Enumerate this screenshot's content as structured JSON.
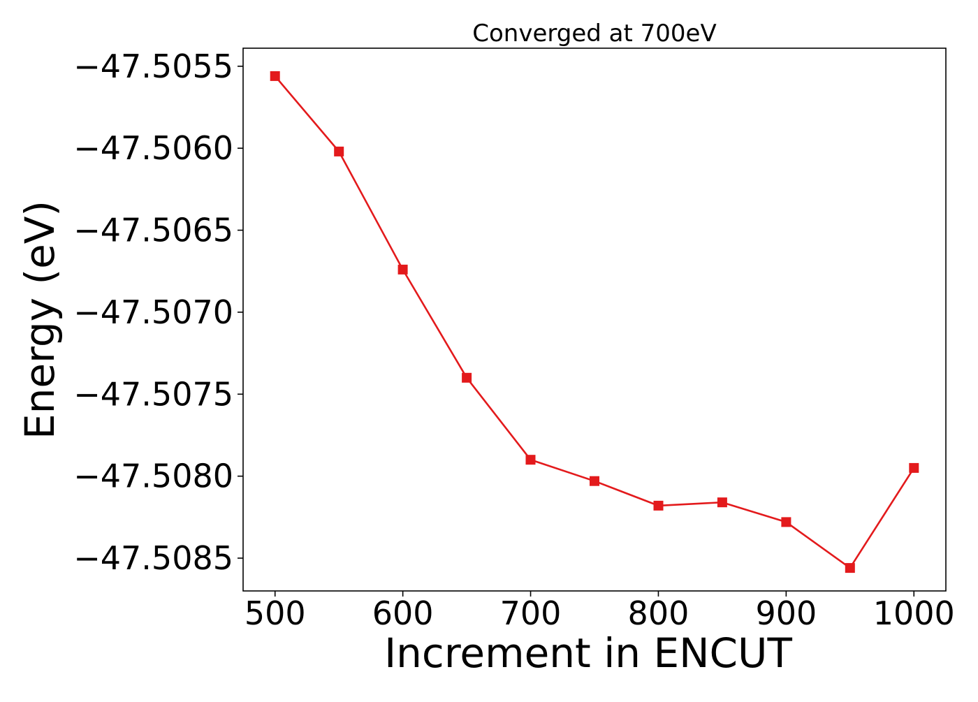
{
  "chart_data": {
    "type": "line",
    "title": "Converged at 700eV",
    "xlabel": "Increment in ENCUT",
    "ylabel": "Energy (eV)",
    "xlim": [
      475,
      1025
    ],
    "ylim": [
      -47.5087,
      -47.50539
    ],
    "xticks": [
      500,
      600,
      700,
      800,
      900,
      1000
    ],
    "xtick_labels": [
      "500",
      "600",
      "700",
      "800",
      "900",
      "1000"
    ],
    "yticks": [
      -47.5055,
      -47.506,
      -47.5065,
      -47.507,
      -47.5075,
      -47.508,
      -47.5085
    ],
    "ytick_labels": [
      "−47.5055",
      "−47.5060",
      "−47.5065",
      "−47.5070",
      "−47.5075",
      "−47.5080",
      "−47.5085"
    ],
    "grid": false,
    "series": [
      {
        "color": "#e31a1c",
        "marker": "square",
        "x": [
          500,
          550,
          600,
          650,
          700,
          750,
          800,
          850,
          900,
          950,
          1000
        ],
        "y": [
          -47.50556,
          -47.50602,
          -47.50674,
          -47.5074,
          -47.5079,
          -47.50803,
          -47.50818,
          -47.50816,
          -47.50828,
          -47.50856,
          -47.50795
        ]
      }
    ]
  }
}
